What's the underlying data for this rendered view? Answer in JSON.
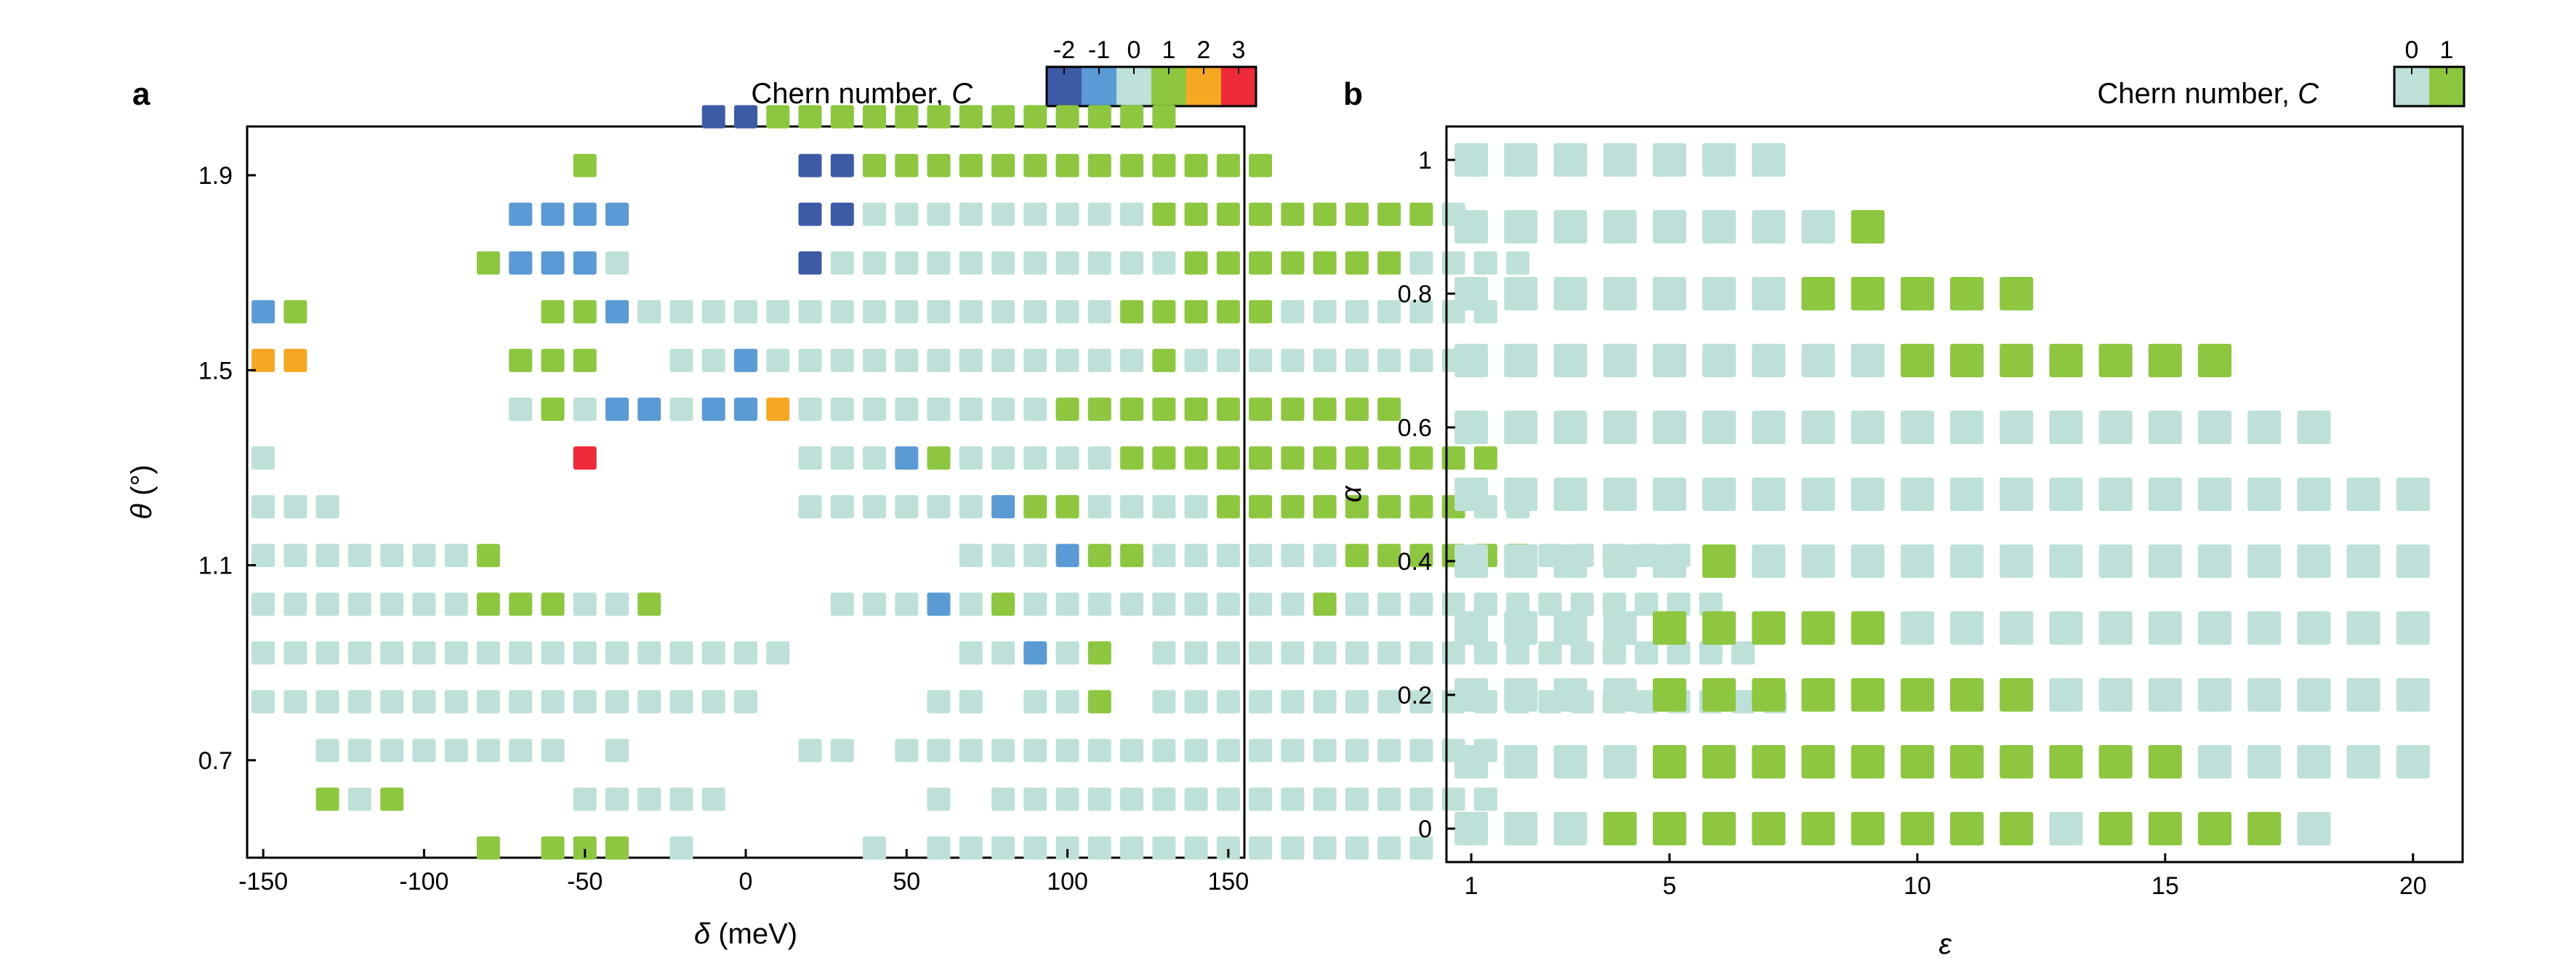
{
  "chart_data": [
    {
      "type": "heatmap",
      "panel_label": "a",
      "xlabel": "δ (meV)",
      "ylabel": "θ (°)",
      "xlim": [
        -155,
        155
      ],
      "ylim": [
        0.5,
        2.0
      ],
      "xticks": [
        -150,
        -100,
        -50,
        0,
        50,
        100,
        150
      ],
      "xtick_labels": [
        "-150",
        "-100",
        "-50",
        "0",
        "50",
        "100",
        "150"
      ],
      "yticks": [
        0.7,
        1.1,
        1.5,
        1.9
      ],
      "ytick_labels": [
        "0.7",
        "1.1",
        "1.5",
        "1.9"
      ],
      "x_step": 10,
      "y_values": [
        0.52,
        0.62,
        0.72,
        0.82,
        0.92,
        1.02,
        1.12,
        1.22,
        1.32,
        1.42,
        1.52,
        1.62,
        1.72,
        1.82,
        1.92,
        2.02
      ],
      "colorbar": {
        "title": "Chern number, C",
        "levels": [
          -2,
          -1,
          0,
          1,
          2,
          3
        ],
        "labels": [
          "-2",
          "-1",
          "0",
          "1",
          "2",
          "3"
        ]
      },
      "grid_note": "rows listed from the bottom row up; each row starts at x_start and steps by x_step; character codes: a=-2, b=-1, 0=0, 1=1, 2=2, 3=3, '.'=no data",
      "rows": [
        {
          "y": 0.52,
          "x_start": -80,
          "codes": "1.111.0.....0.0000000000000000"
        },
        {
          "y": 0.62,
          "x_start": -130,
          "codes": "101.....00000......0.0000000000000000"
        },
        {
          "y": 0.72,
          "x_start": -130,
          "codes": "00000000.0.....00.0000000000000000000"
        },
        {
          "y": 0.82,
          "x_start": -150,
          "codes": "0000000000000000.....00.001.00000000000000000000"
        },
        {
          "y": 0.92,
          "x_start": -150,
          "codes": "00000000000000000.....00b01.0000000000000000000"
        },
        {
          "y": 1.02,
          "x_start": -150,
          "codes": "0000000111001.....000b010000000001000000000000"
        },
        {
          "y": 1.12,
          "x_start": -150,
          "codes": "00000001..............000b1100000011111100000"
        },
        {
          "y": 1.22,
          "x_start": -150,
          "codes": "000..............000000b1100001111111100"
        },
        {
          "y": 1.32,
          "x_start": -150,
          "codes": "0.........3......000b100000111111111111"
        },
        {
          "y": 1.42,
          "x_start": -70,
          "codes": "010bb0bb20000000011111111111"
        },
        {
          "y": 1.52,
          "x_start": -150,
          "codes": "22......111..00b0000000000001000000000"
        },
        {
          "y": 1.62,
          "x_start": -150,
          "codes": "b1.......11b000000000000000111110000000"
        },
        {
          "y": 1.72,
          "x_start": -80,
          "codes": "1bbb0.....a0000000000011111110000"
        },
        {
          "y": 1.82,
          "x_start": -70,
          "codes": "bbbb.....aa0000000001111111110"
        },
        {
          "y": 1.92,
          "x_start": -50,
          "codes": "1......aa1111111111111"
        },
        {
          "y": 2.02,
          "x_start": -10,
          "codes": "aa1111111111111"
        }
      ]
    },
    {
      "type": "heatmap",
      "panel_label": "b",
      "xlabel": "ε",
      "ylabel": "α",
      "xlim": [
        0.5,
        21
      ],
      "ylim": [
        -0.05,
        1.05
      ],
      "xticks": [
        1,
        5,
        10,
        15,
        20
      ],
      "xtick_labels": [
        "1",
        "5",
        "10",
        "15",
        "20"
      ],
      "yticks": [
        0,
        0.2,
        0.4,
        0.6,
        0.8,
        1
      ],
      "ytick_labels": [
        "0",
        "0.2",
        "0.4",
        "0.6",
        "0.8",
        "1"
      ],
      "x_step": 1,
      "colorbar": {
        "title": "Chern number, C",
        "levels": [
          0,
          1
        ],
        "labels": [
          "0",
          "1"
        ]
      },
      "grid_note": "rows listed from alpha=0 upward; each row starts at epsilon=1; codes 0 or 1",
      "rows": [
        {
          "y": 0.0,
          "x_start": 1,
          "codes": "000111111111011110"
        },
        {
          "y": 0.1,
          "x_start": 1,
          "codes": "00001111111111100000"
        },
        {
          "y": 0.2,
          "x_start": 1,
          "codes": "00001111111100000000"
        },
        {
          "y": 0.3,
          "x_start": 1,
          "codes": "00001111100000000000"
        },
        {
          "y": 0.4,
          "x_start": 1,
          "codes": "00000100000000000000"
        },
        {
          "y": 0.5,
          "x_start": 1,
          "codes": "00000000000000000000"
        },
        {
          "y": 0.6,
          "x_start": 1,
          "codes": "000000000000000000"
        },
        {
          "y": 0.7,
          "x_start": 1,
          "codes": "0000000001111111"
        },
        {
          "y": 0.8,
          "x_start": 1,
          "codes": "000000011111"
        },
        {
          "y": 0.9,
          "x_start": 1,
          "codes": "000000001"
        },
        {
          "y": 1.0,
          "x_start": 1,
          "codes": "0000000"
        }
      ]
    }
  ],
  "colors": {
    "c_-2": "#3c5aa6",
    "c_-1": "#5b9bd5",
    "c_0": "#bde0d8",
    "c_1": "#8dc63f",
    "c_2": "#f7a823",
    "c_3": "#ee2a3a"
  }
}
